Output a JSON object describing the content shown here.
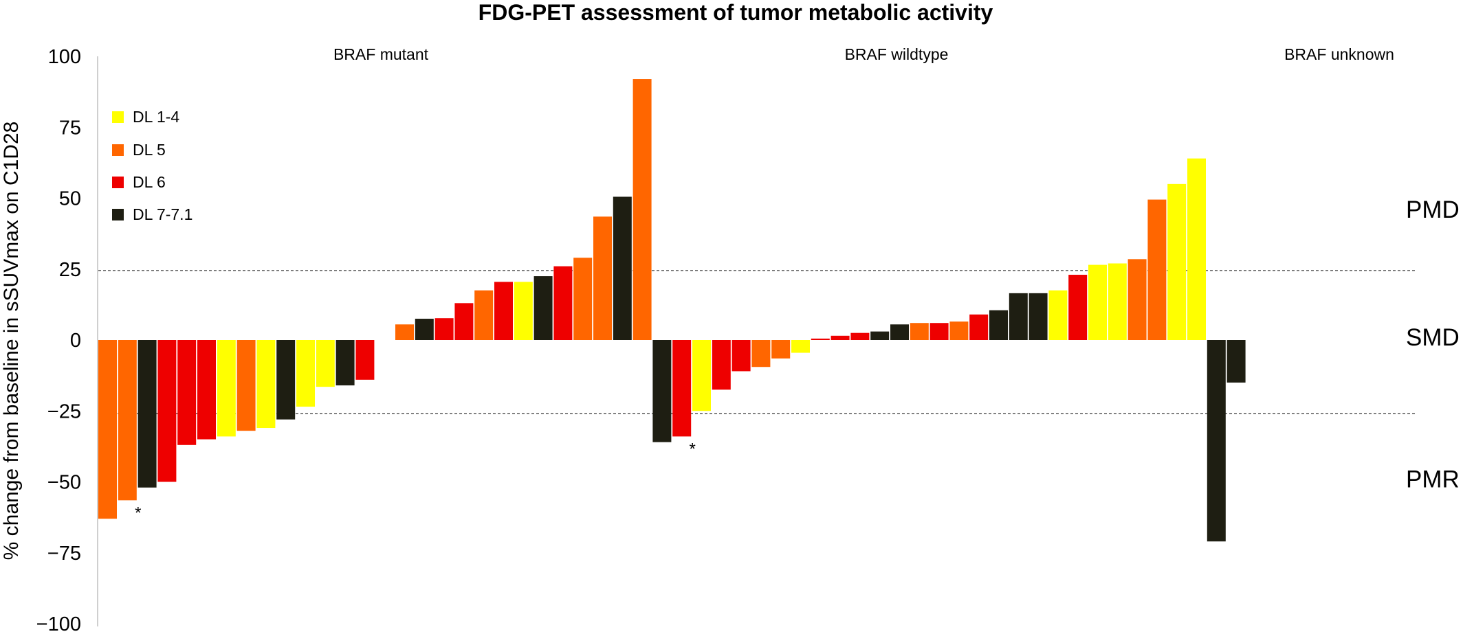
{
  "chart_data": {
    "type": "bar",
    "title": "FDG-PET assessment of tumor metabolic activity",
    "ylabel": "% change from baseline in sSUVmax on C1D28",
    "ylim": [
      -100,
      100
    ],
    "yticks": [
      100,
      75,
      50,
      25,
      0,
      -25,
      -50,
      -75,
      -100
    ],
    "ytick_labels": [
      "100",
      "75",
      "50",
      "25",
      "0",
      "−25",
      "−50",
      "−75",
      "−100"
    ],
    "thresholds": [
      24.5,
      -26
    ],
    "zones": [
      {
        "label": "PMD",
        "y": 46
      },
      {
        "label": "SMD",
        "y": 1
      },
      {
        "label": "PMR",
        "y": -49
      }
    ],
    "legend": [
      {
        "label": "DL 1-4",
        "color": "#FFFF00"
      },
      {
        "label": "DL 5",
        "color": "#FF6600"
      },
      {
        "label": "DL 6",
        "color": "#EE0000"
      },
      {
        "label": "DL 7-7.1",
        "color": "#1E1E12"
      }
    ],
    "colors": {
      "DL 1-4": "#FFFF00",
      "DL 5": "#FF6600",
      "DL 6": "#EE0000",
      "DL 7-7.1": "#1E1E12"
    },
    "groups": [
      {
        "name": "BRAF mutant",
        "bars": [
          {
            "v": -63,
            "dl": "DL 5"
          },
          {
            "v": -56.5,
            "dl": "DL 5",
            "star": "*"
          },
          {
            "v": -52,
            "dl": "DL 7-7.1"
          },
          {
            "v": -50,
            "dl": "DL 6"
          },
          {
            "v": -37,
            "dl": "DL 6"
          },
          {
            "v": -35,
            "dl": "DL 6"
          },
          {
            "v": -34,
            "dl": "DL 1-4"
          },
          {
            "v": -32,
            "dl": "DL 5"
          },
          {
            "v": -31,
            "dl": "DL 1-4"
          },
          {
            "v": -28,
            "dl": "DL 7-7.1"
          },
          {
            "v": -23.5,
            "dl": "DL 1-4"
          },
          {
            "v": -16.5,
            "dl": "DL 1-4"
          },
          {
            "v": -16,
            "dl": "DL 7-7.1"
          },
          {
            "v": -14,
            "dl": "DL 6"
          },
          {
            "v": 0,
            "dl": "DL 6"
          },
          {
            "v": 5.5,
            "dl": "DL 5"
          },
          {
            "v": 7.5,
            "dl": "DL 7-7.1"
          },
          {
            "v": 7.7,
            "dl": "DL 6"
          },
          {
            "v": 13,
            "dl": "DL 6"
          },
          {
            "v": 17.5,
            "dl": "DL 5"
          },
          {
            "v": 20.5,
            "dl": "DL 6"
          },
          {
            "v": 20.5,
            "dl": "DL 1-4"
          },
          {
            "v": 22.5,
            "dl": "DL 7-7.1"
          },
          {
            "v": 26,
            "dl": "DL 6"
          },
          {
            "v": 29,
            "dl": "DL 5"
          },
          {
            "v": 43.5,
            "dl": "DL 5"
          },
          {
            "v": 50.5,
            "dl": "DL 7-7.1"
          },
          {
            "v": 92,
            "dl": "DL 5"
          }
        ]
      },
      {
        "name": "BRAF  wildtype",
        "bars": [
          {
            "v": -36,
            "dl": "DL 7-7.1"
          },
          {
            "v": -34,
            "dl": "DL 6",
            "star": "*"
          },
          {
            "v": -25,
            "dl": "DL 1-4"
          },
          {
            "v": -17.5,
            "dl": "DL 6"
          },
          {
            "v": -11,
            "dl": "DL 6"
          },
          {
            "v": -9.5,
            "dl": "DL 5"
          },
          {
            "v": -6.5,
            "dl": "DL 5"
          },
          {
            "v": -4.5,
            "dl": "DL 1-4"
          },
          {
            "v": 0.5,
            "dl": "DL 6"
          },
          {
            "v": 1.5,
            "dl": "DL 6"
          },
          {
            "v": 2.5,
            "dl": "DL 6"
          },
          {
            "v": 3,
            "dl": "DL 7-7.1"
          },
          {
            "v": 5.5,
            "dl": "DL 7-7.1"
          },
          {
            "v": 6,
            "dl": "DL 5"
          },
          {
            "v": 6,
            "dl": "DL 6"
          },
          {
            "v": 6.5,
            "dl": "DL 5"
          },
          {
            "v": 9,
            "dl": "DL 6"
          },
          {
            "v": 10.5,
            "dl": "DL 7-7.1"
          },
          {
            "v": 16.5,
            "dl": "DL 7-7.1"
          },
          {
            "v": 16.5,
            "dl": "DL 7-7.1"
          },
          {
            "v": 17.5,
            "dl": "DL 1-4"
          },
          {
            "v": 23,
            "dl": "DL 6"
          },
          {
            "v": 26.5,
            "dl": "DL 1-4"
          },
          {
            "v": 27,
            "dl": "DL 1-4"
          },
          {
            "v": 28.5,
            "dl": "DL 5"
          },
          {
            "v": 49.5,
            "dl": "DL 5"
          },
          {
            "v": 55,
            "dl": "DL 1-4"
          },
          {
            "v": 64,
            "dl": "DL 1-4"
          }
        ]
      },
      {
        "name": "BRAF unknown",
        "bars": [
          {
            "v": -71,
            "dl": "DL 7-7.1"
          },
          {
            "v": -15,
            "dl": "DL 7-7.1"
          }
        ]
      }
    ]
  }
}
